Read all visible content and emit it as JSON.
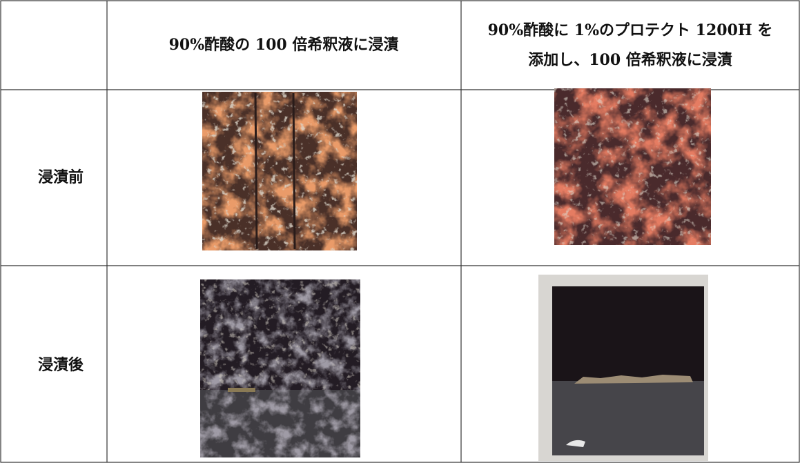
{
  "table": {
    "columns": [
      {
        "lines": [
          "90%酢酸の 100 倍希釈液に浸漬"
        ]
      },
      {
        "lines": [
          "90%酢酸に 1%のプロテクト 1200H を",
          "添加し、100 倍希釈液に浸漬"
        ]
      }
    ],
    "rows": [
      {
        "label": "浸漬前"
      },
      {
        "label": "浸漬後"
      }
    ]
  }
}
